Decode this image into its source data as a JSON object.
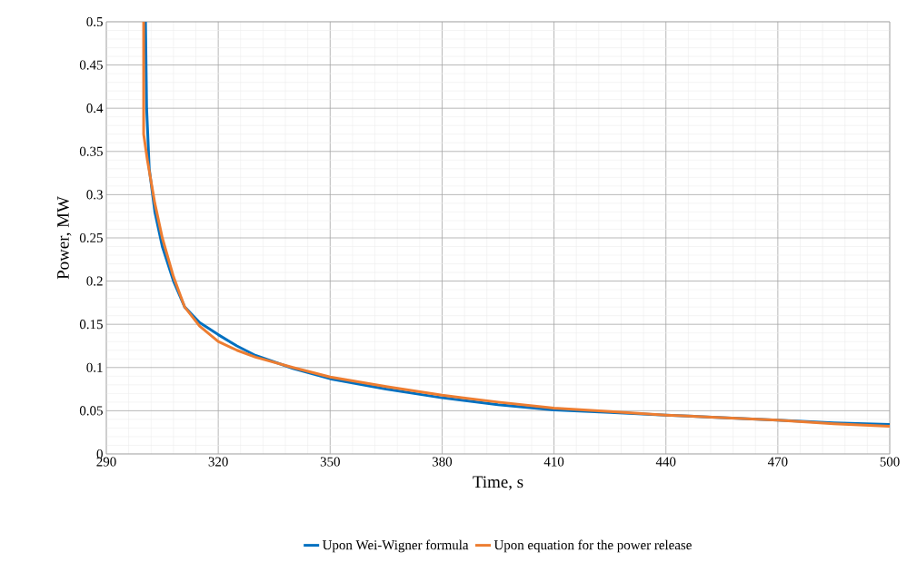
{
  "chart_data": {
    "type": "line",
    "xlabel": "Time, s",
    "ylabel": "Power, MW",
    "xlim": [
      290,
      500
    ],
    "xticks": [
      290,
      320,
      350,
      380,
      410,
      440,
      470,
      500
    ],
    "ylim": [
      0,
      0.5
    ],
    "yticks": [
      0,
      0.05,
      0.1,
      0.15,
      0.2,
      0.25,
      0.3,
      0.35,
      0.4,
      0.45,
      0.5
    ],
    "grid": true,
    "legend": "bottom",
    "marker": "none",
    "line_style": "solid",
    "series": [
      {
        "name": "Upon Wei-Wigner formula",
        "color": "#0070c0",
        "x": [
          300.5,
          300.8,
          301.5,
          303,
          305,
          308,
          311,
          315,
          320,
          325,
          330,
          340,
          350,
          365,
          380,
          395,
          410,
          425,
          440,
          455,
          470,
          485,
          500
        ],
        "values": [
          0.5,
          0.4,
          0.33,
          0.28,
          0.24,
          0.2,
          0.17,
          0.152,
          0.138,
          0.125,
          0.114,
          0.099,
          0.087,
          0.075,
          0.065,
          0.057,
          0.051,
          0.048,
          0.045,
          0.042,
          0.039,
          0.036,
          0.034
        ]
      },
      {
        "name": "Upon equation for the power release",
        "color": "#ed7d31",
        "x": [
          300,
          300,
          301,
          303,
          305,
          308,
          311,
          315,
          320,
          325,
          330,
          340,
          350,
          365,
          380,
          395,
          410,
          425,
          440,
          455,
          470,
          485,
          500
        ],
        "values": [
          0.5,
          0.37,
          0.34,
          0.29,
          0.25,
          0.205,
          0.17,
          0.148,
          0.13,
          0.12,
          0.112,
          0.1,
          0.089,
          0.078,
          0.068,
          0.06,
          0.053,
          0.049,
          0.045,
          0.042,
          0.039,
          0.035,
          0.032
        ]
      }
    ]
  }
}
